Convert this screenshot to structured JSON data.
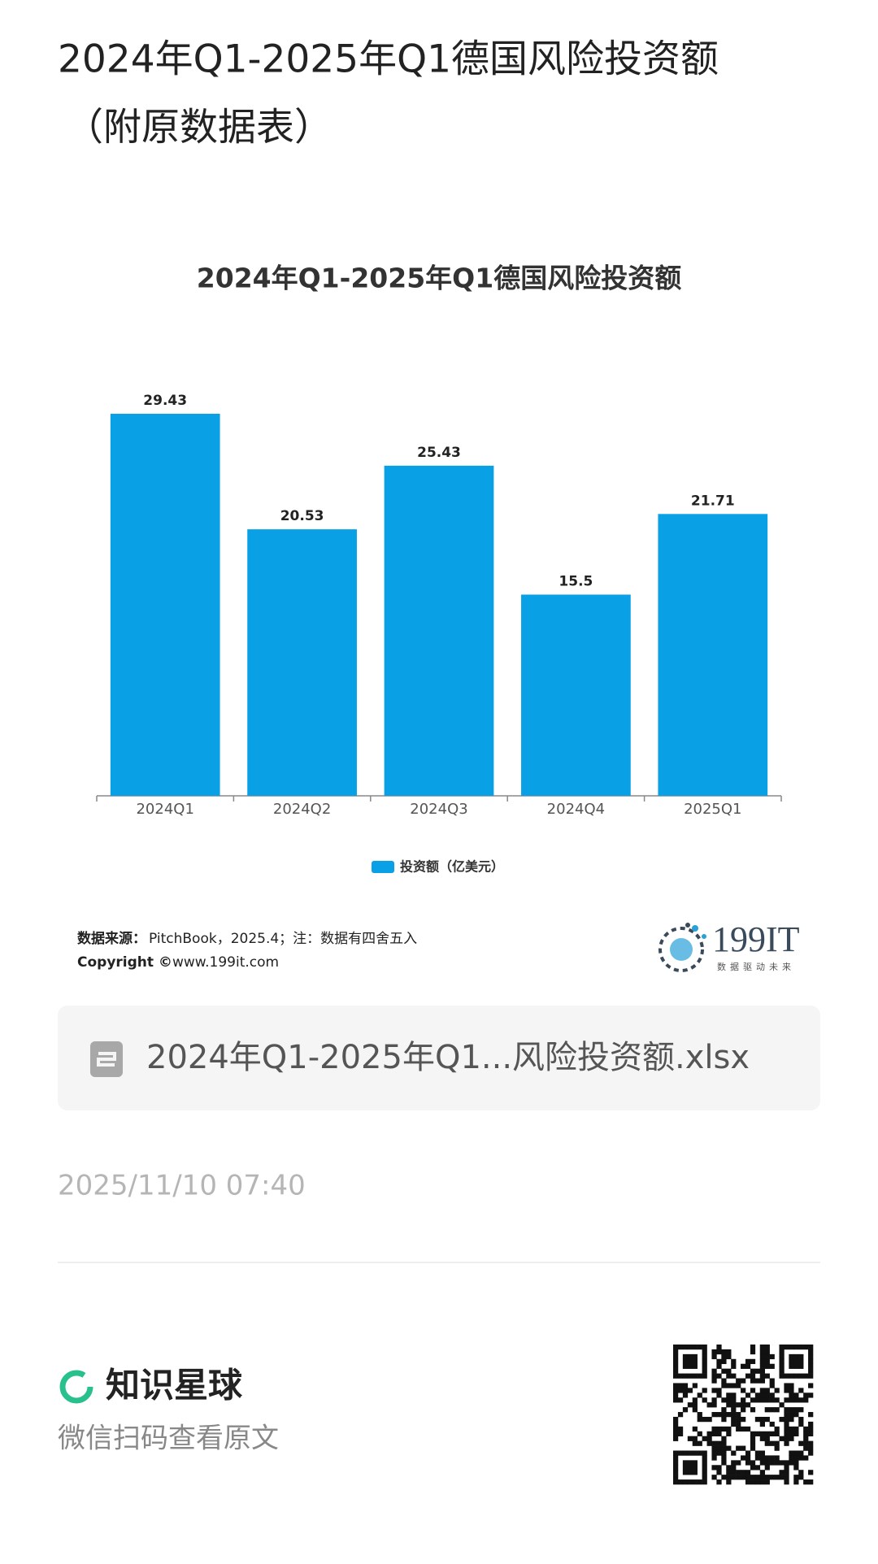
{
  "header": {
    "title": [
      "2024年Q1-2025年Q1德国风险投资额",
      "（附原数据表）"
    ]
  },
  "chart_data": {
    "type": "bar",
    "title": "2024年Q1-2025年Q1德国风险投资额",
    "categories": [
      "2024Q1",
      "2024Q2",
      "2024Q3",
      "2024Q4",
      "2025Q1"
    ],
    "series": [
      {
        "name": "投资额（亿美元）",
        "color": "#0aa0e6",
        "values": [
          29.43,
          20.53,
          25.43,
          15.5,
          21.71
        ]
      }
    ]
  },
  "source": {
    "label": "数据来源：",
    "text": "PitchBook，2025.4；注：数据有四舍五入",
    "copyright_label": "Copyright ©",
    "copyright_text": "www.199it.com"
  },
  "logo": {
    "name": "199IT",
    "tagline": "数据驱动未来"
  },
  "attachment": {
    "file_name": "2024年Q1-2025年Q1...风险投资额.xlsx"
  },
  "timestamp": "2025/11/10 07:40",
  "footer": {
    "brand": "知识星球",
    "hint": "微信扫码查看原文"
  }
}
